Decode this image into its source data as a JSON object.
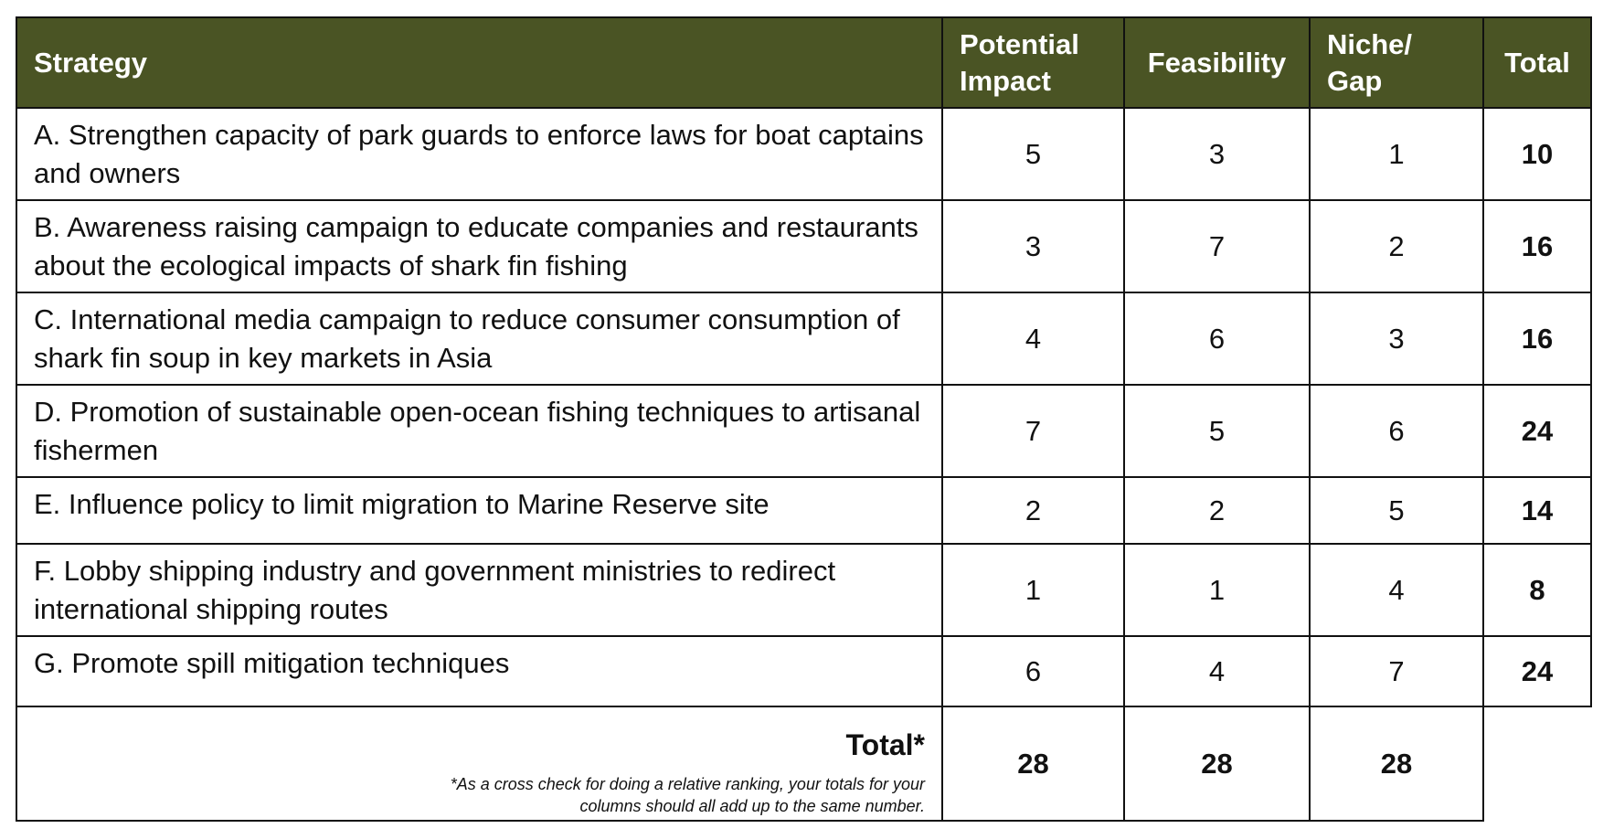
{
  "table": {
    "headers": [
      "Strategy",
      "Potential Impact",
      "Feasibility",
      "Niche/ Gap",
      "Total"
    ],
    "rows": [
      {
        "strategy": "A. Strengthen capacity of park guards to enforce laws for boat captains and owners",
        "potential_impact": 5,
        "feasibility": 3,
        "niche_gap": 1,
        "total": 10
      },
      {
        "strategy": "B. Awareness raising campaign to educate companies and restaurants about the ecological impacts of shark fin fishing",
        "potential_impact": 3,
        "feasibility": 7,
        "niche_gap": 2,
        "total": 16
      },
      {
        "strategy": "C. International media campaign to reduce consumer consumption of shark fin soup in key markets in Asia",
        "potential_impact": 4,
        "feasibility": 6,
        "niche_gap": 3,
        "total": 16
      },
      {
        "strategy": "D. Promotion of sustainable open-ocean fishing techniques to artisanal fishermen",
        "potential_impact": 7,
        "feasibility": 5,
        "niche_gap": 6,
        "total": 24
      },
      {
        "strategy": "E.  Influence policy to limit migration to Marine Reserve site",
        "potential_impact": 2,
        "feasibility": 2,
        "niche_gap": 5,
        "total": 14
      },
      {
        "strategy": "F.  Lobby shipping industry and government ministries to redirect international shipping routes",
        "potential_impact": 1,
        "feasibility": 1,
        "niche_gap": 4,
        "total": 8
      },
      {
        "strategy": "G.  Promote spill mitigation techniques",
        "potential_impact": 6,
        "feasibility": 4,
        "niche_gap": 7,
        "total": 24
      }
    ],
    "totals": {
      "label": "Total*",
      "note": "*As a cross check for doing a relative ranking, your totals for your columns should all add up to the same number.",
      "potential_impact": 28,
      "feasibility": 28,
      "niche_gap": 28
    }
  }
}
